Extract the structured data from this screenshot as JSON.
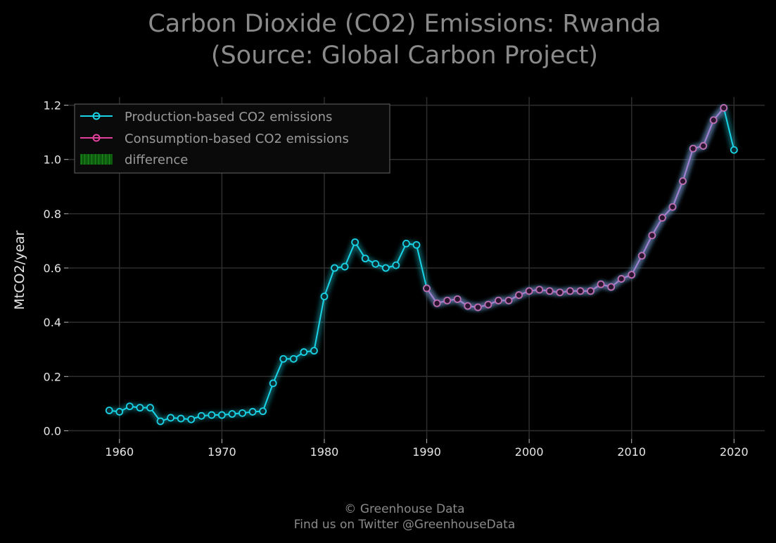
{
  "chart_data": {
    "type": "line",
    "title_line1": "Carbon Dioxide (CO2) Emissions: Rwanda",
    "title_line2": "(Source: Global Carbon Project)",
    "xlabel": "",
    "ylabel": "MtCO2/year",
    "xlim": [
      1955,
      2023
    ],
    "ylim": [
      -0.03,
      1.23
    ],
    "xticks": [
      1960,
      1970,
      1980,
      1990,
      2000,
      2010,
      2020
    ],
    "yticks": [
      0.0,
      0.2,
      0.4,
      0.6,
      0.8,
      1.0,
      1.2
    ],
    "ytick_labels": [
      "0.0",
      "0.2",
      "0.4",
      "0.6",
      "0.8",
      "1.0",
      "1.2"
    ],
    "grid": true,
    "legend_position": "top-left",
    "legend": [
      "Production-based CO2 emissions",
      "Consumption-based CO2 emissions",
      "difference"
    ],
    "colors": {
      "production": "#19d3e6",
      "consumption": "#e0409a",
      "difference": "#1a7a1a",
      "grid": "#2e2e2e",
      "background": "#000000"
    },
    "series": [
      {
        "name": "Production-based CO2 emissions",
        "x": [
          1959,
          1960,
          1961,
          1962,
          1963,
          1964,
          1965,
          1966,
          1967,
          1968,
          1969,
          1970,
          1971,
          1972,
          1973,
          1974,
          1975,
          1976,
          1977,
          1978,
          1979,
          1980,
          1981,
          1982,
          1983,
          1984,
          1985,
          1986,
          1987,
          1988,
          1989,
          1990,
          1991,
          1992,
          1993,
          1994,
          1995,
          1996,
          1997,
          1998,
          1999,
          2000,
          2001,
          2002,
          2003,
          2004,
          2005,
          2006,
          2007,
          2008,
          2009,
          2010,
          2011,
          2012,
          2013,
          2014,
          2015,
          2016,
          2017,
          2018,
          2019,
          2020
        ],
        "y": [
          0.075,
          0.07,
          0.09,
          0.085,
          0.085,
          0.035,
          0.048,
          0.045,
          0.042,
          0.055,
          0.058,
          0.058,
          0.062,
          0.065,
          0.07,
          0.072,
          0.175,
          0.265,
          0.265,
          0.29,
          0.295,
          0.495,
          0.6,
          0.605,
          0.695,
          0.635,
          0.615,
          0.6,
          0.61,
          0.69,
          0.685,
          0.525,
          0.47,
          0.48,
          0.485,
          0.46,
          0.455,
          0.465,
          0.48,
          0.48,
          0.5,
          0.515,
          0.52,
          0.515,
          0.51,
          0.515,
          0.515,
          0.515,
          0.54,
          0.53,
          0.56,
          0.575,
          0.645,
          0.72,
          0.785,
          0.825,
          0.92,
          1.04,
          1.05,
          1.145,
          1.19,
          1.035
        ]
      },
      {
        "name": "Consumption-based CO2 emissions",
        "x": [
          1990,
          1991,
          1992,
          1993,
          1994,
          1995,
          1996,
          1997,
          1998,
          1999,
          2000,
          2001,
          2002,
          2003,
          2004,
          2005,
          2006,
          2007,
          2008,
          2009,
          2010,
          2011,
          2012,
          2013,
          2014,
          2015,
          2016,
          2017,
          2018,
          2019
        ],
        "y": [
          0.525,
          0.47,
          0.48,
          0.485,
          0.46,
          0.455,
          0.465,
          0.48,
          0.48,
          0.5,
          0.515,
          0.52,
          0.515,
          0.51,
          0.515,
          0.515,
          0.515,
          0.54,
          0.53,
          0.56,
          0.575,
          0.645,
          0.72,
          0.785,
          0.825,
          0.92,
          1.04,
          1.05,
          1.145,
          1.19
        ]
      }
    ],
    "footer_line1": "© Greenhouse Data",
    "footer_line2": "Find us on Twitter @GreenhouseData"
  }
}
